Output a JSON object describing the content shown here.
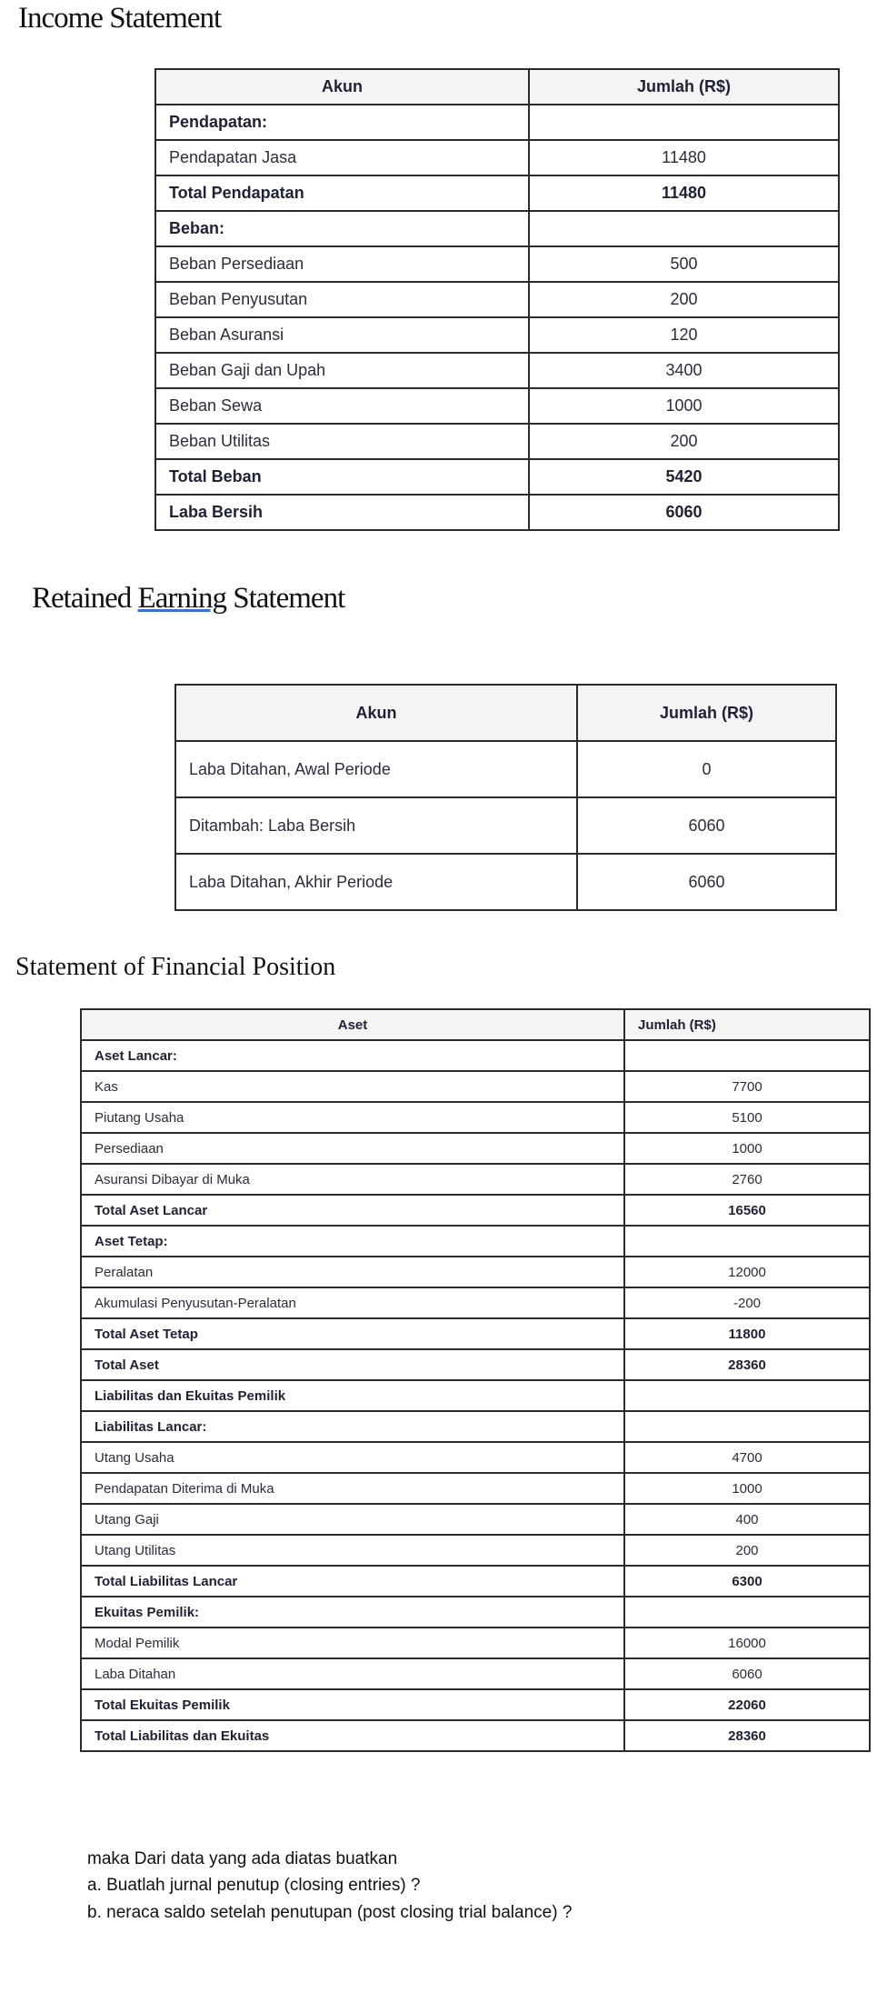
{
  "income_statement": {
    "title": "Income Statement",
    "headers": [
      "Akun",
      "Jumlah (R$)"
    ],
    "rows": [
      {
        "label": "Pendapatan:",
        "value": "",
        "bold": true
      },
      {
        "label": "Pendapatan Jasa",
        "value": "11480",
        "bold": false
      },
      {
        "label": "Total Pendapatan",
        "value": "11480",
        "bold": true
      },
      {
        "label": "Beban:",
        "value": "",
        "bold": true
      },
      {
        "label": "Beban Persediaan",
        "value": "500",
        "bold": false
      },
      {
        "label": "Beban Penyusutan",
        "value": "200",
        "bold": false
      },
      {
        "label": "Beban Asuransi",
        "value": "120",
        "bold": false
      },
      {
        "label": "Beban Gaji dan Upah",
        "value": "3400",
        "bold": false
      },
      {
        "label": "Beban Sewa",
        "value": "1000",
        "bold": false
      },
      {
        "label": "Beban Utilitas",
        "value": "200",
        "bold": false
      },
      {
        "label": "Total Beban",
        "value": "5420",
        "bold": true
      },
      {
        "label": "Laba Bersih",
        "value": "6060",
        "bold": true
      }
    ]
  },
  "retained_earning_statement": {
    "title_before": "Retained ",
    "title_underlined": "Earning",
    "title_after": " Statement",
    "headers": [
      "Akun",
      "Jumlah (R$)"
    ],
    "rows": [
      {
        "label": "Laba Ditahan, Awal Periode",
        "value": "0",
        "bold": false
      },
      {
        "label": "Ditambah: Laba Bersih",
        "value": "6060",
        "bold": false
      },
      {
        "label": "Laba Ditahan, Akhir Periode",
        "value": "6060",
        "bold": false
      }
    ]
  },
  "financial_position": {
    "title": "Statement of Financial Position",
    "headers": [
      "Aset",
      "Jumlah (R$)"
    ],
    "rows": [
      {
        "label": "Aset Lancar:",
        "value": "",
        "bold": true
      },
      {
        "label": "Kas",
        "value": "7700",
        "bold": false
      },
      {
        "label": "Piutang Usaha",
        "value": "5100",
        "bold": false
      },
      {
        "label": "Persediaan",
        "value": "1000",
        "bold": false
      },
      {
        "label": "Asuransi Dibayar di Muka",
        "value": "2760",
        "bold": false
      },
      {
        "label": "Total Aset Lancar",
        "value": "16560",
        "bold": true
      },
      {
        "label": "Aset Tetap:",
        "value": "",
        "bold": true
      },
      {
        "label": "Peralatan",
        "value": "12000",
        "bold": false
      },
      {
        "label": "Akumulasi Penyusutan-Peralatan",
        "value": "-200",
        "bold": false
      },
      {
        "label": "Total Aset Tetap",
        "value": "11800",
        "bold": true
      },
      {
        "label": "Total Aset",
        "value": "28360",
        "bold": true
      },
      {
        "label": "Liabilitas dan Ekuitas Pemilik",
        "value": "",
        "bold": true
      },
      {
        "label": "Liabilitas Lancar:",
        "value": "",
        "bold": true
      },
      {
        "label": "Utang Usaha",
        "value": "4700",
        "bold": false
      },
      {
        "label": "Pendapatan Diterima di Muka",
        "value": "1000",
        "bold": false
      },
      {
        "label": "Utang Gaji",
        "value": "400",
        "bold": false
      },
      {
        "label": "Utang Utilitas",
        "value": "200",
        "bold": false
      },
      {
        "label": "Total Liabilitas Lancar",
        "value": "6300",
        "bold": true
      },
      {
        "label": "Ekuitas Pemilik:",
        "value": "",
        "bold": true
      },
      {
        "label": "Modal Pemilik",
        "value": "16000",
        "bold": false
      },
      {
        "label": "Laba Ditahan",
        "value": "6060",
        "bold": false
      },
      {
        "label": "Total Ekuitas Pemilik",
        "value": "22060",
        "bold": true
      },
      {
        "label": "Total Liabilitas dan Ekuitas",
        "value": "28360",
        "bold": true
      }
    ]
  },
  "questions": {
    "intro": "maka Dari data yang ada diatas buatkan",
    "a": "a.  Buatlah jurnal penutup (closing entries)  ?",
    "b": "b. neraca saldo setelah penutupan (post closing trial balance) ?"
  }
}
